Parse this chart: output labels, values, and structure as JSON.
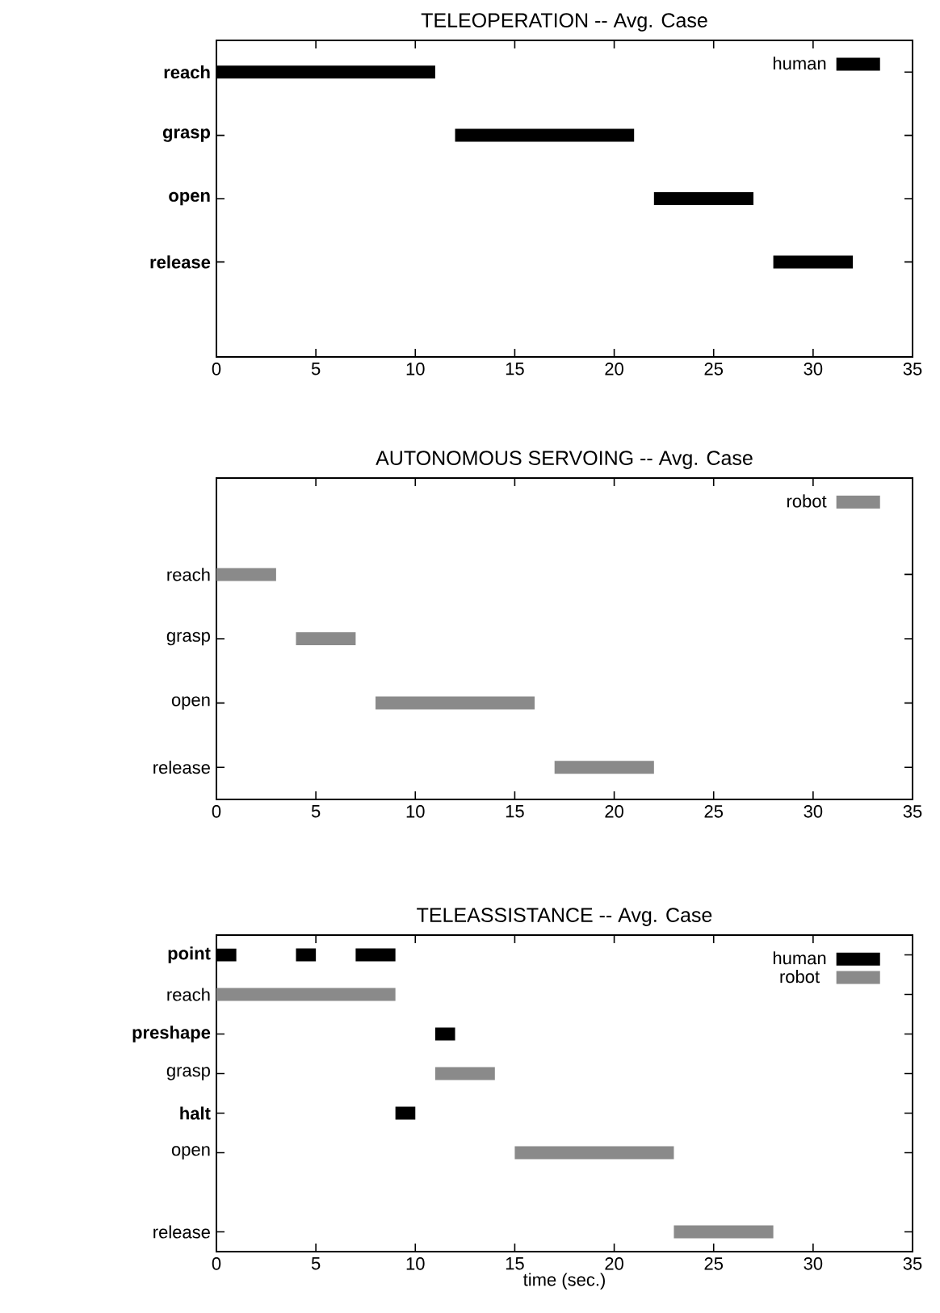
{
  "chart_data": [
    {
      "type": "bar",
      "orientation": "horizontal",
      "title": "TELEOPERATION -- Avg. Case",
      "categories": [
        "reach",
        "grasp",
        "open",
        "release",
        null
      ],
      "xlim": [
        0,
        35
      ],
      "xticks": [
        0,
        5,
        10,
        15,
        20,
        25,
        30,
        35
      ],
      "legend": "top right",
      "series": [
        {
          "name": "human",
          "color": "#000000",
          "values": [
            11,
            9,
            5,
            4,
            null
          ],
          "base": [
            0,
            12,
            22,
            28,
            null
          ]
        }
      ]
    },
    {
      "type": "bar",
      "orientation": "horizontal",
      "title": "AUTONOMOUS SERVOING -- Avg. Case",
      "categories": [
        null,
        "reach",
        "grasp",
        "open",
        "release"
      ],
      "xlim": [
        0,
        35
      ],
      "xticks": [
        0,
        5,
        10,
        15,
        20,
        25,
        30,
        35
      ],
      "legend": "top right",
      "series": [
        {
          "name": "robot",
          "color": "#8a8a8a",
          "values": [
            null,
            3,
            3,
            8,
            5
          ],
          "base": [
            null,
            0,
            4,
            8,
            17
          ]
        }
      ]
    },
    {
      "type": "bar",
      "orientation": "horizontal",
      "title": "TELEASSISTANCE -- Avg. Case",
      "xlabel": "time (sec.)",
      "categories": [
        "point",
        "reach",
        "preshape",
        "grasp",
        "halt",
        "open",
        null,
        "release"
      ],
      "xlim": [
        0,
        35
      ],
      "xticks": [
        0,
        5,
        10,
        15,
        20,
        25,
        30,
        35
      ],
      "legend": "top right",
      "series": [
        {
          "name": "human",
          "color": "#000000",
          "values": [
            1,
            null,
            1,
            null,
            1,
            null,
            null,
            null
          ],
          "base": [
            0,
            null,
            11,
            null,
            9,
            null,
            null,
            null
          ]
        },
        {
          "color": "#000000",
          "values": [
            1,
            null,
            null,
            null,
            null,
            null,
            null,
            null
          ],
          "base": [
            4,
            null,
            null,
            null,
            null,
            null,
            null,
            null
          ]
        },
        {
          "color": "#000000",
          "values": [
            2,
            null,
            null,
            null,
            null,
            null,
            null,
            null
          ],
          "base": [
            7,
            null,
            null,
            null,
            null,
            null,
            null,
            null
          ]
        },
        {
          "name": "robot",
          "color": "#8a8a8a",
          "values": [
            null,
            9,
            null,
            3,
            null,
            8,
            null,
            5
          ],
          "base": [
            null,
            0,
            null,
            11,
            null,
            15,
            null,
            23
          ]
        }
      ]
    }
  ]
}
